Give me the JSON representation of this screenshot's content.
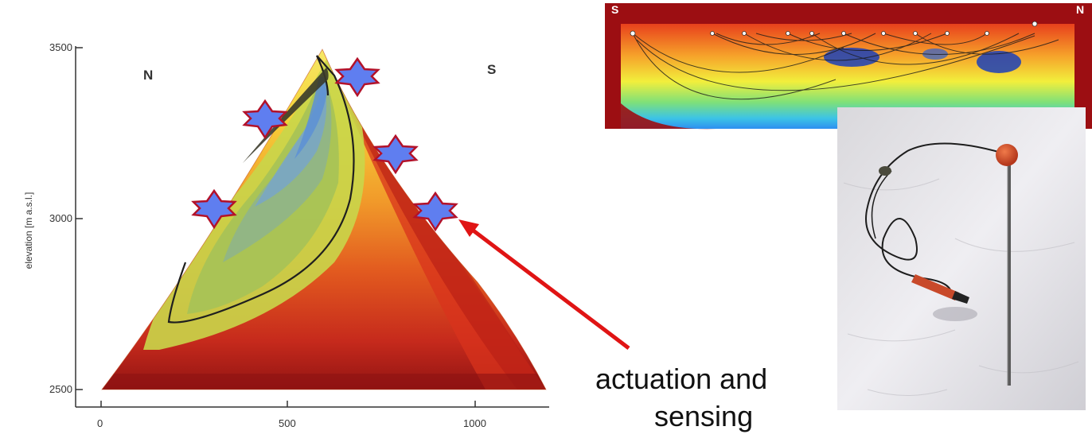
{
  "plot": {
    "ylabel": "elevation [m a.s.l.]",
    "y_ticks": [
      "3500",
      "3000",
      "2500"
    ],
    "x_ticks": [
      "0",
      "500",
      "1000"
    ],
    "side_left": "N",
    "side_right": "S",
    "ylim": [
      2500,
      3500
    ],
    "xlim": [
      0,
      1200
    ]
  },
  "sensor_markers": {
    "count": 5,
    "icon": "star-icon",
    "fill_color": "#5f7ef0",
    "stroke_color": "#b3122a"
  },
  "callout": {
    "line1": "actuation and",
    "line2": "sensing",
    "arrow_color": "#e01414"
  },
  "tomography": {
    "label_left": "S",
    "label_right": "N"
  },
  "photo": {
    "subject": "sensor probe on snow"
  },
  "colors": {
    "cold": "#2e7fd6",
    "warm": "#f2e63a",
    "hot": "#8e1212"
  }
}
